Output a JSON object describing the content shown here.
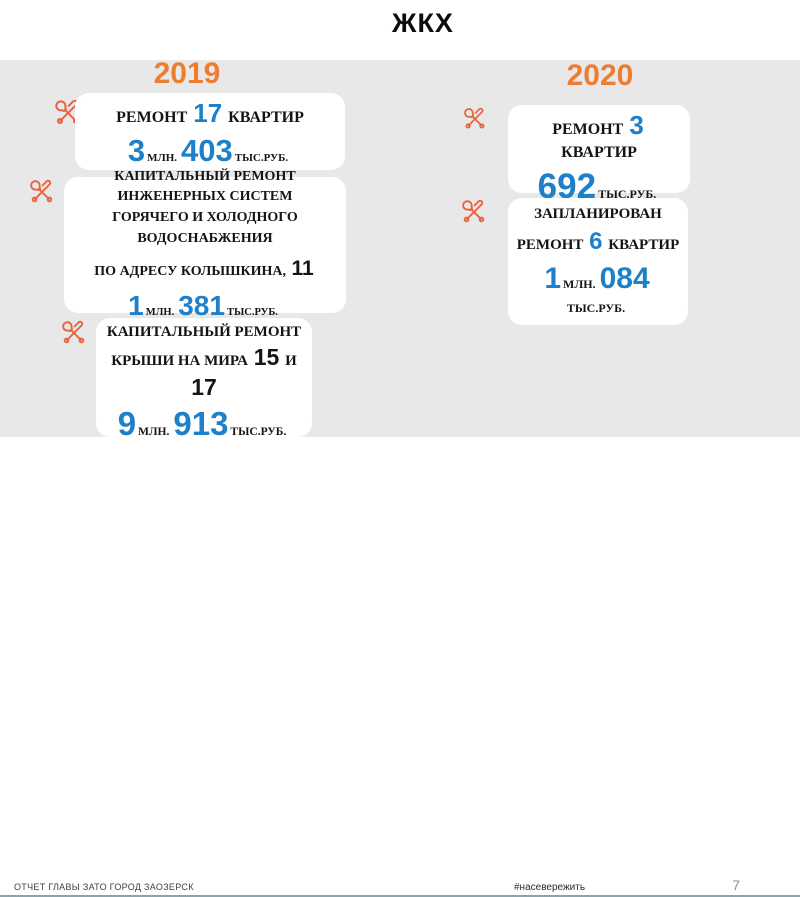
{
  "title": "ЖКХ",
  "colors": {
    "year_accent": "#ed7d31",
    "number_accent": "#1e80c8",
    "icon_accent": "#e8643f",
    "background_band": "#e8e8e8",
    "footer_rule": "#8aa4ae"
  },
  "columns": [
    {
      "year": "2019",
      "cards": [
        {
          "id": "l1",
          "icon": "tools-icon",
          "lines": [
            {
              "seg": [
                {
                  "t": "РЕМОНТ ",
                  "s": "label"
                },
                {
                  "t": "17",
                  "s": "num"
                },
                {
                  "t": " КВАРТИР",
                  "s": "label"
                }
              ]
            },
            {
              "seg": [
                {
                  "t": "3",
                  "s": "big"
                },
                {
                  "t": "МЛН.",
                  "s": "unit"
                },
                {
                  "t": "403",
                  "s": "big"
                },
                {
                  "t": "ТЫС.РУБ.",
                  "s": "unit"
                }
              ]
            }
          ]
        },
        {
          "id": "l2",
          "icon": "tools-icon",
          "lines": [
            {
              "seg": [
                {
                  "t": "КАПИТАЛЬНЫЙ РЕМОНТ",
                  "s": "label"
                }
              ]
            },
            {
              "seg": [
                {
                  "t": "ИНЖЕНЕРНЫХ СИСТЕМ",
                  "s": "label"
                }
              ]
            },
            {
              "seg": [
                {
                  "t": "ГОРЯЧЕГО И ХОЛОДНОГО",
                  "s": "label"
                }
              ]
            },
            {
              "seg": [
                {
                  "t": "ВОДОСНАБЖЕНИЯ",
                  "s": "label"
                }
              ]
            },
            {
              "gap": true,
              "seg": [
                {
                  "t": "ПО АДРЕСУ КОЛЫШКИНА, ",
                  "s": "label"
                },
                {
                  "t": "11",
                  "s": "numk"
                }
              ]
            },
            {
              "gap": true,
              "seg": [
                {
                  "t": "1",
                  "s": "big"
                },
                {
                  "t": "МЛН.",
                  "s": "unit"
                },
                {
                  "t": "381",
                  "s": "big"
                },
                {
                  "t": "ТЫС.РУБ.",
                  "s": "unit"
                }
              ]
            }
          ]
        },
        {
          "id": "l3",
          "icon": "tools-icon",
          "lines": [
            {
              "seg": [
                {
                  "t": "КАПИТАЛЬНЫЙ РЕМОНТ",
                  "s": "label"
                }
              ]
            },
            {
              "seg": [
                {
                  "t": "КРЫШИ НА МИРА ",
                  "s": "label"
                },
                {
                  "t": "15",
                  "s": "numk"
                },
                {
                  "t": " И",
                  "s": "label"
                }
              ]
            },
            {
              "seg": [
                {
                  "t": "17",
                  "s": "numk"
                }
              ]
            },
            {
              "seg": [
                {
                  "t": "9",
                  "s": "big"
                },
                {
                  "t": "МЛН.",
                  "s": "unit"
                },
                {
                  "t": "913",
                  "s": "big"
                },
                {
                  "t": "ТЫС.РУБ.",
                  "s": "unit"
                }
              ]
            }
          ]
        }
      ]
    },
    {
      "year": "2020",
      "cards": [
        {
          "id": "r1",
          "icon": "tools-icon",
          "lines": [
            {
              "seg": [
                {
                  "t": "РЕМОНТ ",
                  "s": "label"
                },
                {
                  "t": "3",
                  "s": "num"
                },
                {
                  "t": " КВАРТИР",
                  "s": "label"
                }
              ]
            },
            {
              "seg": [
                {
                  "t": "692",
                  "s": "big"
                },
                {
                  "t": "ТЫС.РУБ.",
                  "s": "unit"
                }
              ]
            }
          ]
        },
        {
          "id": "r2",
          "icon": "tools-icon",
          "lines": [
            {
              "seg": [
                {
                  "t": "ЗАПЛАНИРОВАН",
                  "s": "label"
                }
              ]
            },
            {
              "seg": [
                {
                  "t": "РЕМОНТ ",
                  "s": "label"
                },
                {
                  "t": "6",
                  "s": "num"
                },
                {
                  "t": " КВАРТИР",
                  "s": "label"
                }
              ]
            },
            {
              "seg": [
                {
                  "t": "1",
                  "s": "big"
                },
                {
                  "t": "МЛН.",
                  "s": "unit"
                },
                {
                  "t": "084",
                  "s": "big"
                },
                {
                  "t": " ТЫС.РУБ.",
                  "s": "unit"
                }
              ]
            }
          ]
        }
      ]
    }
  ],
  "footer": {
    "left": "ОТЧЕТ ГЛАВЫ ЗАТО ГОРОД ЗАОЗЕРСК",
    "hashtag": "#насевережить",
    "page": "7"
  }
}
